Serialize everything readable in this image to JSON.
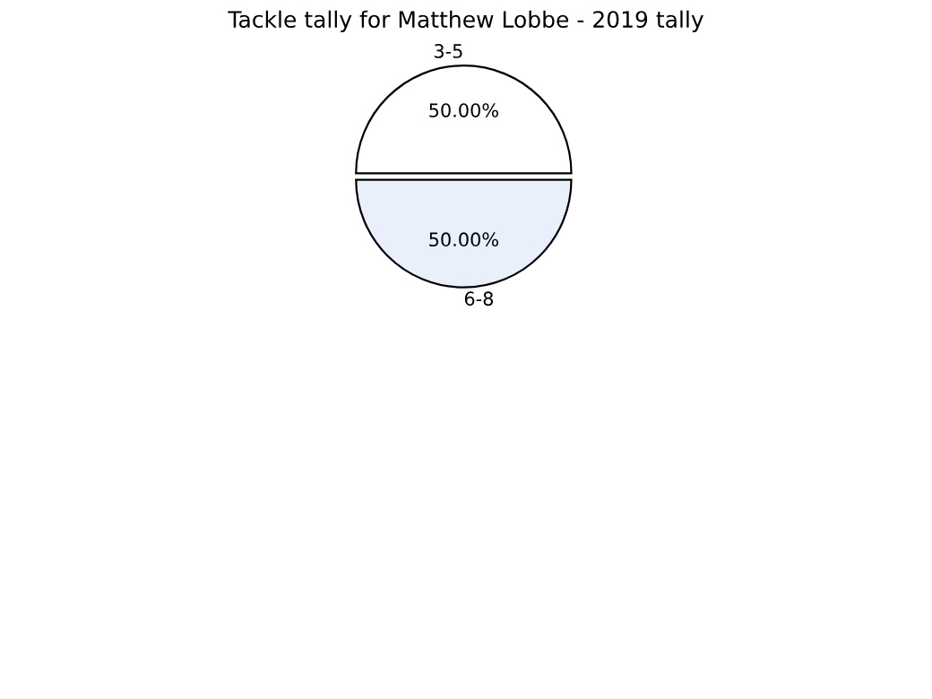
{
  "chart_data": {
    "type": "pie",
    "title": "Tackle tally for Matthew Lobbe - 2019 tally",
    "categories": [
      "3-5",
      "6-8"
    ],
    "values": [
      50,
      50
    ],
    "colors": [
      "#ffffff",
      "#eaf0fb"
    ],
    "value_labels": [
      "50.00%",
      "50.00%"
    ],
    "legend": false
  }
}
